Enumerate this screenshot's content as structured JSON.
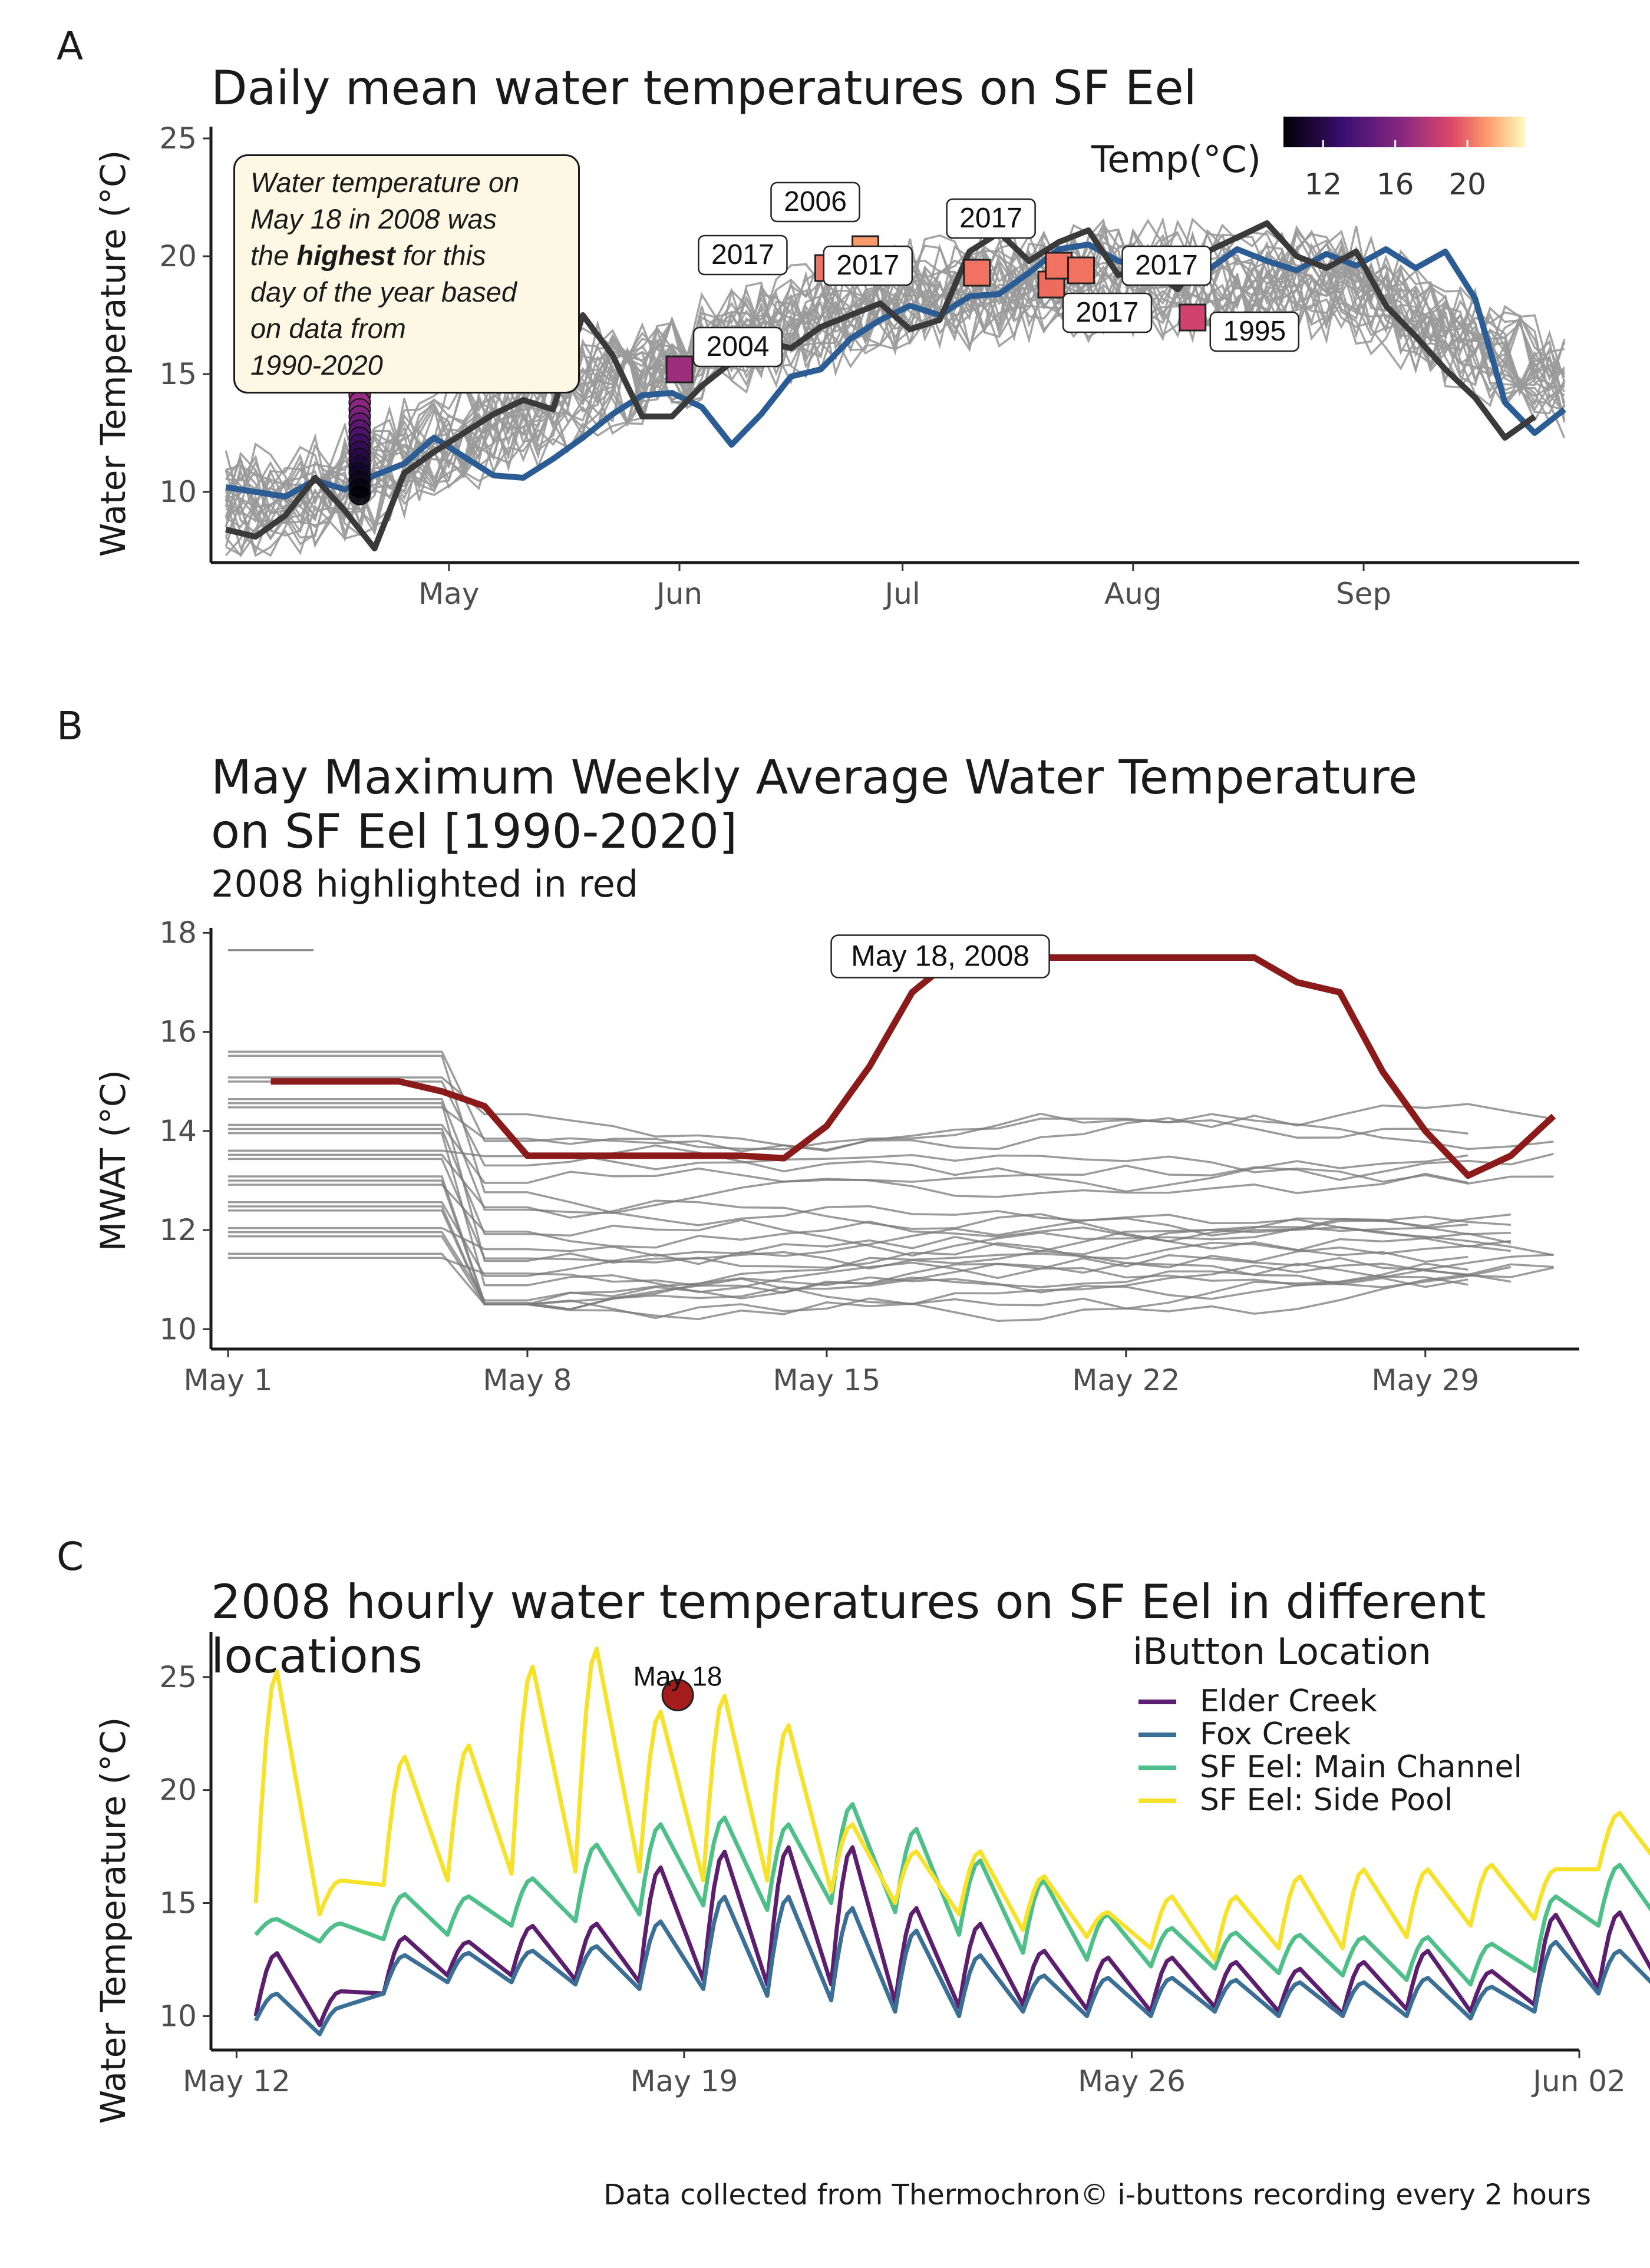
{
  "panels": [
    {
      "label": "A",
      "title": "Daily mean water temperatures on SF Eel",
      "ylabel": "Water Temperature (°C)",
      "callout": {
        "line1": "Water temperature on",
        "line2": "May 18 in 2008 was",
        "line3_pre": "the ",
        "line3_bold": "highest",
        "line3_post": " for this",
        "line4": "day of the year based",
        "line5": "on data from",
        "line6": "1990-2020"
      },
      "legend_title": "Temp(°C)",
      "legend_ticks": [
        "12",
        "16",
        "20"
      ]
    },
    {
      "label": "B",
      "title_line1": "May Maximum Weekly Average Water Temperature",
      "title_line2": "on SF Eel [1990-2020]",
      "subtitle": "2008 highlighted in red",
      "ylabel": "MWAT (°C)"
    },
    {
      "label": "C",
      "title": "2008 hourly water temperatures on SF Eel in different locations",
      "ylabel": "Water Temperature (°C)",
      "legend_title": "iButton Location"
    }
  ],
  "caption": "Data collected from Thermochron© i-buttons recording every 2 hours",
  "chart_data": [
    {
      "type": "line",
      "title": "Daily mean water temperatures on SF Eel",
      "ylabel": "Water Temperature (°C)",
      "ylim": [
        7,
        25.5
      ],
      "y_ticks": [
        10,
        15,
        20,
        25
      ],
      "x_ticks": [
        "May",
        "Jun",
        "Jul",
        "Aug",
        "Sep"
      ],
      "x_day_ticks": [
        30,
        61,
        91,
        122,
        153
      ],
      "xlim": [
        -2,
        182
      ],
      "series_bold": [
        {
          "color": "#2b5d94",
          "x": [
            0,
            4,
            8,
            12,
            16,
            20,
            24,
            28,
            32,
            36,
            40,
            44,
            48,
            52,
            56,
            60,
            64,
            68,
            72,
            76,
            80,
            84,
            88,
            92,
            96,
            100,
            104,
            108,
            112,
            116,
            120,
            124,
            128,
            132,
            136,
            140,
            144,
            148,
            152,
            156,
            160,
            164,
            168,
            172,
            176,
            180
          ],
          "y": [
            10.2,
            10.0,
            9.8,
            10.5,
            10.1,
            10.7,
            11.2,
            12.3,
            11.5,
            10.7,
            10.6,
            11.4,
            12.3,
            13.3,
            14.1,
            14.2,
            13.6,
            12.0,
            13.3,
            14.9,
            15.2,
            16.5,
            17.3,
            17.9,
            17.5,
            18.3,
            18.4,
            19.3,
            20.3,
            20.5,
            19.8,
            19.5,
            19.9,
            19.4,
            20.3,
            19.8,
            19.4,
            20.1,
            19.6,
            20.3,
            19.5,
            20.2,
            18.2,
            13.8,
            12.5,
            13.5
          ]
        },
        {
          "color": "#3a3a3a",
          "x": [
            0,
            4,
            8,
            12,
            16,
            20,
            24,
            28,
            32,
            36,
            40,
            44,
            48,
            52,
            56,
            60,
            64,
            68,
            72,
            76,
            80,
            84,
            88,
            92,
            96,
            100,
            104,
            108,
            112,
            116,
            120,
            124,
            128,
            132,
            136,
            140,
            144,
            148,
            152,
            156,
            160,
            164,
            168,
            172,
            176
          ],
          "y": [
            8.4,
            8.1,
            9.0,
            10.6,
            9.2,
            7.6,
            10.8,
            11.7,
            12.5,
            13.3,
            13.9,
            13.5,
            17.5,
            15.8,
            13.2,
            13.2,
            14.5,
            15.5,
            16.4,
            16.1,
            17.0,
            17.5,
            18.0,
            16.9,
            17.3,
            20.2,
            21.0,
            19.8,
            20.6,
            21.1,
            19.2,
            19.5,
            18.6,
            20.2,
            20.8,
            21.4,
            20.0,
            19.5,
            20.2,
            17.9,
            16.6,
            15.2,
            14.0,
            12.3,
            13.2
          ]
        }
      ],
      "highlight_point": {
        "label": "May 18, 2008",
        "x": 18,
        "y": 17.5,
        "color": "#e0405f"
      },
      "may18_distribution": [
        14.4,
        14.1,
        13.8,
        13.5,
        13.2,
        12.9,
        12.6,
        12.3,
        12.0,
        11.7,
        11.4,
        11.1,
        10.8,
        10.5,
        10.2,
        9.9
      ],
      "record_points": [
        {
          "label": "2004",
          "x": 61,
          "y": 15.2,
          "color": "#9c2f7d"
        },
        {
          "label": "2017",
          "x": 81,
          "y": 19.5,
          "color": "#ef7360"
        },
        {
          "label": "2006",
          "x": 86,
          "y": 20.3,
          "color": "#f79a6c"
        },
        {
          "label": "2017",
          "x": 101,
          "y": 19.3,
          "color": "#ef7360"
        },
        {
          "label": "2017",
          "x": 111,
          "y": 18.8,
          "color": "#ee6b5e"
        },
        {
          "label": "2017",
          "x": 112,
          "y": 19.6,
          "color": "#ef7360"
        },
        {
          "label": "2017",
          "x": 115,
          "y": 19.4,
          "color": "#ef7360"
        },
        {
          "label": "1995",
          "x": 130,
          "y": 17.4,
          "color": "#d1426f"
        }
      ]
    },
    {
      "type": "line",
      "title": "May Maximum Weekly Average Water Temperature on SF Eel [1990-2020]",
      "subtitle": "2008 highlighted in red",
      "ylabel": "MWAT (°C)",
      "ylim": [
        9.6,
        18.1
      ],
      "y_ticks": [
        10,
        12,
        14,
        16,
        18
      ],
      "x_ticks": [
        "May 1",
        "May 8",
        "May 15",
        "May 22",
        "May 29"
      ],
      "x_tick_values": [
        1,
        8,
        15,
        22,
        29
      ],
      "xlim": [
        0.6,
        32.6
      ],
      "highlight": {
        "name": "2008",
        "label": "May 18, 2008",
        "color": "#8b1a1a",
        "x": [
          2,
          3,
          4,
          5,
          6,
          7,
          8,
          9,
          10,
          11,
          12,
          13,
          14,
          15,
          16,
          17,
          18,
          19,
          20,
          21,
          22,
          23,
          24,
          25,
          26,
          27,
          28,
          29,
          30,
          31,
          32
        ],
        "y": [
          15.0,
          15.0,
          15.0,
          15.0,
          14.8,
          14.5,
          13.5,
          13.5,
          13.5,
          13.5,
          13.5,
          13.5,
          13.45,
          14.1,
          15.3,
          16.8,
          17.5,
          17.5,
          17.5,
          17.5,
          17.5,
          17.5,
          17.5,
          17.5,
          17.0,
          16.8,
          15.2,
          14.0,
          13.1,
          13.5,
          14.3
        ]
      }
    },
    {
      "type": "line",
      "title": "2008 hourly water temperatures on SF Eel in different locations",
      "ylabel": "Water Temperature (°C)",
      "ylim": [
        8.5,
        27.0
      ],
      "y_ticks": [
        10,
        15,
        20,
        25
      ],
      "x_ticks": [
        "May 12",
        "May 19",
        "May 26",
        "Jun 02"
      ],
      "x_tick_days": [
        12,
        19,
        26,
        33
      ],
      "xlim": [
        11.6,
        33.0
      ],
      "peak_marker": {
        "label": "May 18",
        "x": 18.9,
        "y": 24.2,
        "color": "#a51c1c"
      },
      "series": [
        {
          "name": "Elder Creek",
          "color": "#5b1f6e",
          "max": [
            12.8,
            11.1,
            13.5,
            13.3,
            14.0,
            14.1,
            16.6,
            17.3,
            17.5,
            17.5,
            14.8,
            14.1,
            12.9,
            12.6,
            12.6,
            12.4,
            12.1,
            12.4,
            12.9,
            12.0,
            14.5,
            14.6
          ],
          "min": [
            10.0,
            9.6,
            11.0,
            11.8,
            11.8,
            11.6,
            11.5,
            11.6,
            11.4,
            11.4,
            10.6,
            10.4,
            10.5,
            10.3,
            10.2,
            10.4,
            10.2,
            10.1,
            10.3,
            10.2,
            10.5,
            11.2
          ]
        },
        {
          "name": "Fox Creek",
          "color": "#3c6f96",
          "max": [
            11.0,
            10.4,
            12.7,
            12.8,
            12.9,
            13.1,
            14.2,
            15.3,
            15.3,
            14.8,
            13.8,
            12.7,
            11.8,
            11.7,
            11.7,
            11.6,
            11.5,
            11.5,
            11.7,
            11.3,
            13.3,
            12.9
          ],
          "min": [
            9.8,
            9.2,
            11.0,
            11.5,
            11.5,
            11.4,
            11.2,
            11.2,
            10.9,
            10.7,
            10.2,
            10.0,
            10.2,
            10.0,
            10.0,
            10.2,
            10.0,
            10.0,
            10.0,
            9.9,
            10.2,
            11.0
          ]
        },
        {
          "name": "SF Eel: Main Channel",
          "color": "#4fbf8a",
          "max": [
            14.3,
            14.1,
            15.4,
            15.3,
            16.1,
            17.6,
            18.5,
            18.8,
            18.5,
            19.4,
            18.3,
            16.9,
            16.0,
            14.5,
            13.9,
            13.7,
            13.6,
            13.5,
            13.5,
            13.2,
            15.3,
            16.7
          ],
          "min": [
            13.6,
            13.3,
            13.4,
            13.6,
            14.0,
            14.2,
            14.5,
            14.9,
            14.7,
            15.0,
            14.6,
            13.6,
            12.8,
            12.5,
            12.2,
            12.1,
            11.9,
            11.8,
            11.6,
            11.4,
            12.0,
            14.0
          ]
        },
        {
          "name": "SF Eel: Side Pool",
          "color": "#f6e22b",
          "max": [
            25.3,
            16.0,
            21.5,
            22.0,
            25.5,
            26.3,
            23.5,
            24.2,
            22.9,
            18.5,
            17.3,
            17.3,
            16.2,
            14.6,
            15.3,
            15.3,
            16.2,
            16.5,
            16.5,
            16.7,
            16.5,
            19.0
          ],
          "min": [
            15.0,
            14.5,
            15.8,
            16.0,
            16.3,
            16.4,
            16.4,
            16.0,
            16.0,
            15.5,
            15.0,
            14.5,
            13.8,
            13.5,
            13.0,
            12.5,
            13.0,
            13.0,
            13.5,
            14.0,
            14.3,
            16.5
          ]
        }
      ]
    }
  ]
}
